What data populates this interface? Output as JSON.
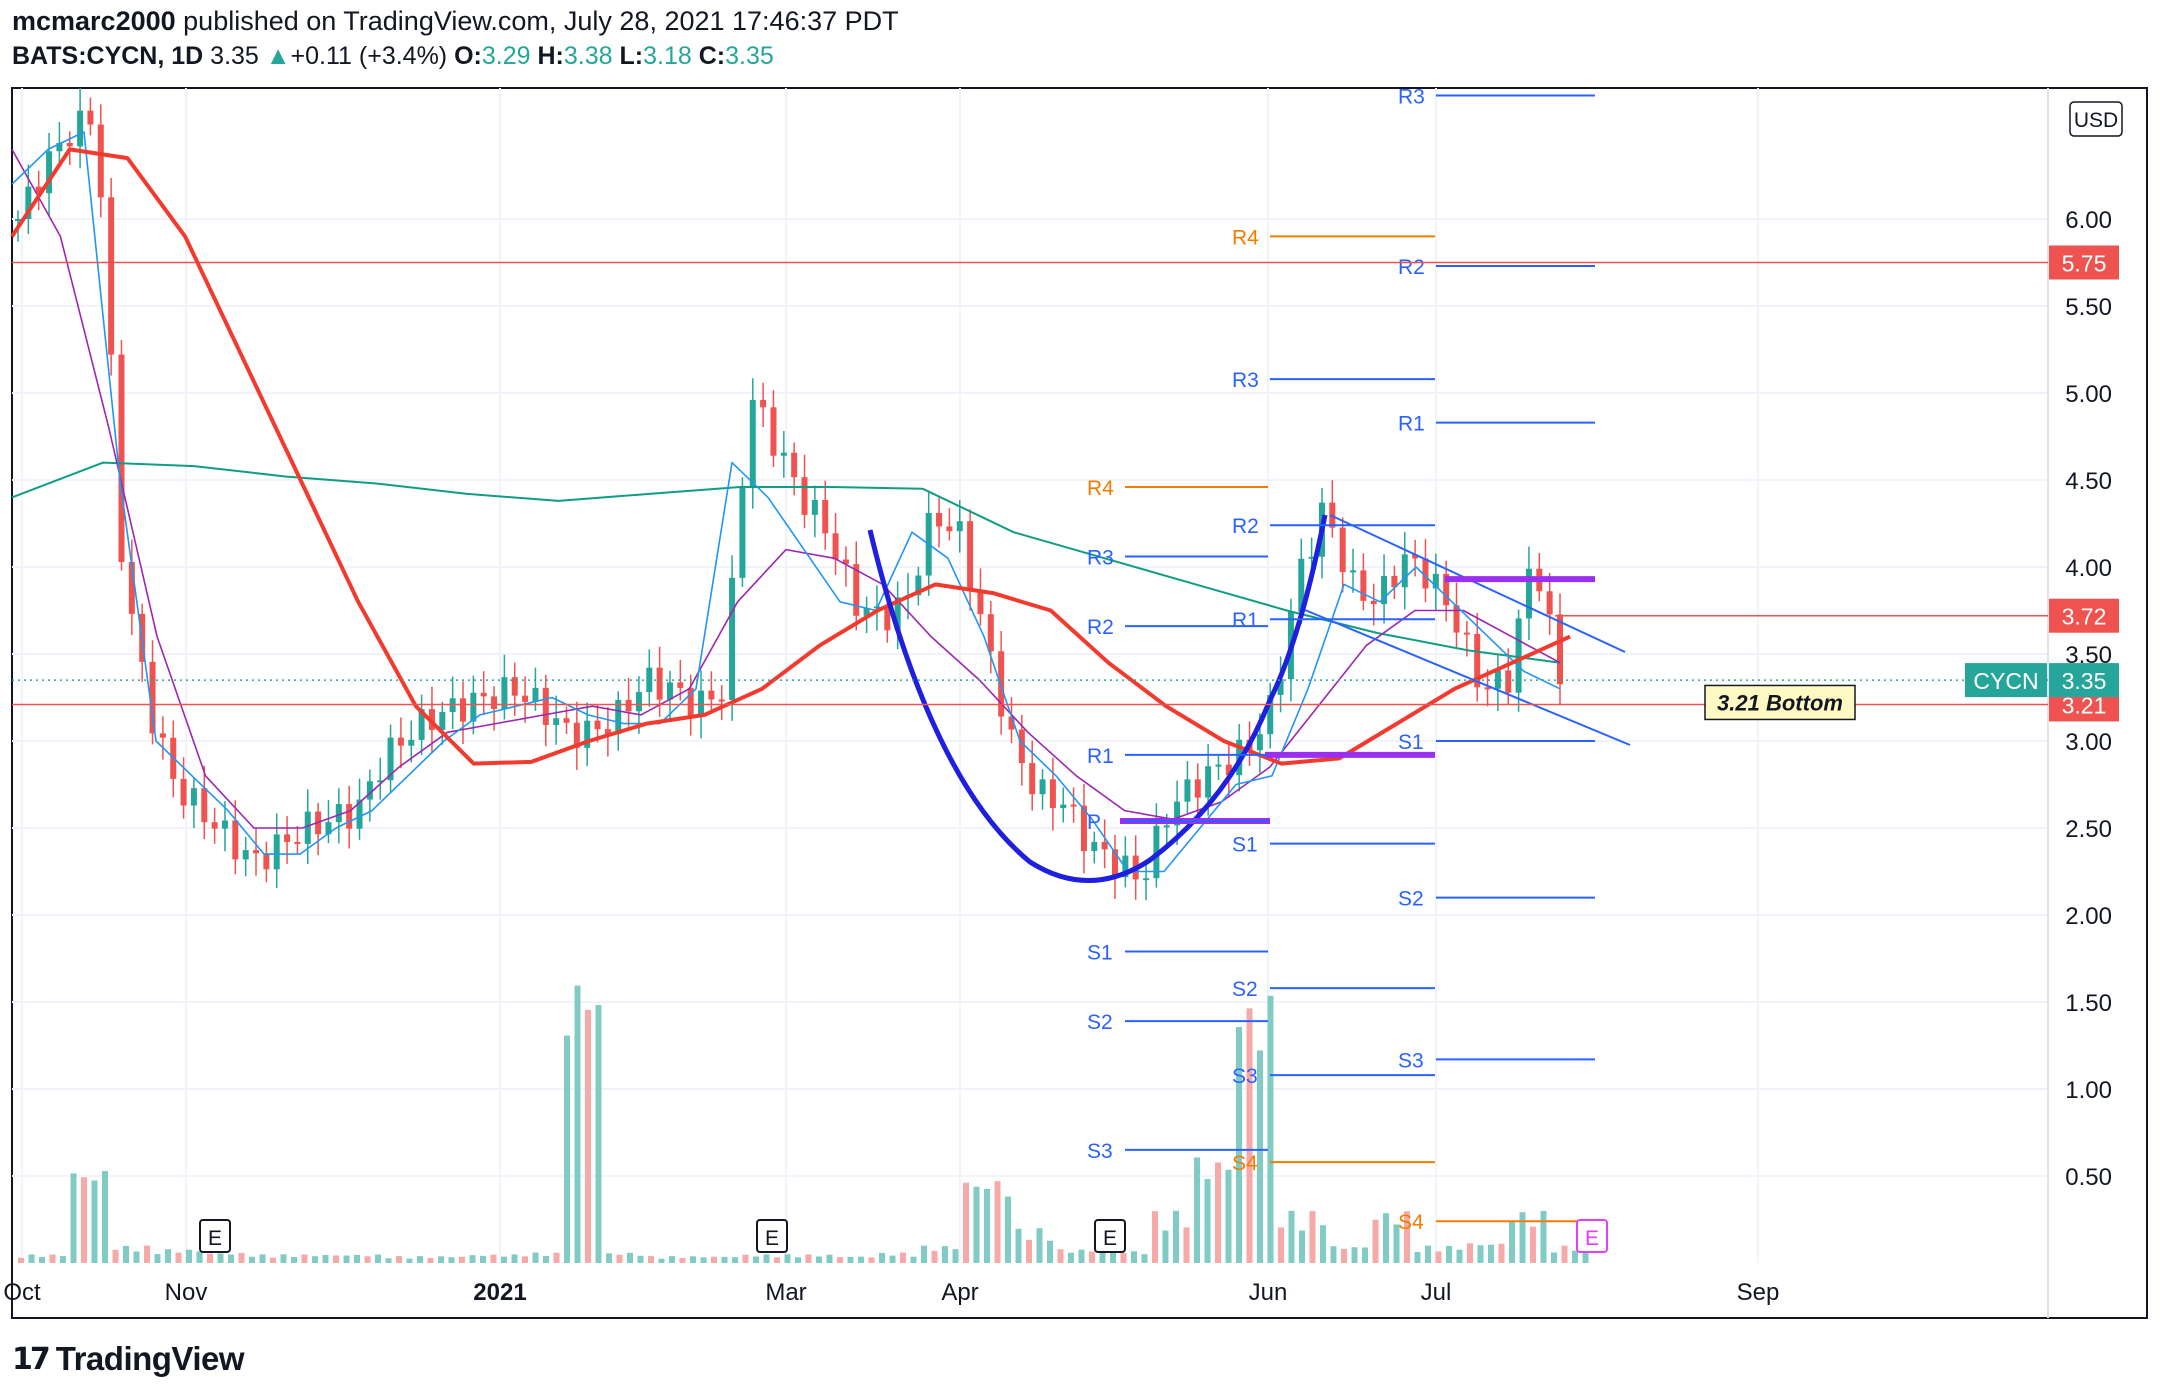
{
  "header": {
    "author": "mcmarc2000",
    "published_text": "published on TradingView.com, July 28, 2021 17:46:37 PDT",
    "symbol": "BATS:CYCN, 1D",
    "last": "3.35",
    "arrow": "▲",
    "change": "+0.11 (+3.4%)",
    "o_label": "O:",
    "o_value": "3.29",
    "h_label": "H:",
    "h_value": "3.38",
    "l_label": "L:",
    "l_value": "3.18",
    "c_label": "C:",
    "c_value": "3.35"
  },
  "currency": "USD",
  "logo_text": "TradingView",
  "colors": {
    "up": "#26a69a",
    "down": "#ef5350",
    "ma_fast": "#2196f3",
    "ma_mid": "#9c27b0",
    "ma_red": "#f23a2f",
    "ma_teal": "#0f9d84",
    "pattern": "#1f1fe0",
    "zone": "#9b2ff0",
    "pivot_blue": "#2962ff",
    "pivot_orange": "#f57c00"
  },
  "chart_data": {
    "type": "candlestick",
    "y_axis": {
      "min": 0,
      "max": 6.8,
      "ticks": [
        "0.50",
        "1.00",
        "1.50",
        "2.00",
        "2.50",
        "3.00",
        "3.50",
        "4.00",
        "4.50",
        "5.00",
        "5.50",
        "6.00"
      ]
    },
    "x_axis": {
      "ticks": [
        "Oct",
        "Nov",
        "2021",
        "Mar",
        "Apr",
        "Jun",
        "Jul",
        "Sep"
      ]
    },
    "price_labels": [
      {
        "label": "5.75",
        "value": 5.75,
        "kind": "level"
      },
      {
        "label": "3.72",
        "value": 3.72,
        "kind": "level"
      },
      {
        "label": "3.21",
        "value": 3.21,
        "kind": "level"
      },
      {
        "label": "3.35",
        "value": 3.35,
        "kind": "last",
        "symbol": "CYCN"
      }
    ],
    "annotations": [
      {
        "text": "3.21 Bottom",
        "value": 3.21
      }
    ],
    "earnings_markers": [
      "E",
      "E",
      "E",
      "E"
    ],
    "pivots": [
      {
        "label": "R4",
        "value": 4.46,
        "block": 1,
        "color": "orange"
      },
      {
        "label": "R3",
        "value": 4.06,
        "block": 1,
        "color": "blue"
      },
      {
        "label": "R2",
        "value": 3.66,
        "block": 1,
        "color": "blue"
      },
      {
        "label": "R1",
        "value": 2.92,
        "block": 1,
        "color": "blue"
      },
      {
        "label": "P",
        "value": 2.54,
        "block": 1,
        "color": "blue"
      },
      {
        "label": "S1",
        "value": 1.79,
        "block": 1,
        "color": "blue"
      },
      {
        "label": "S2",
        "value": 1.39,
        "block": 1,
        "color": "blue"
      },
      {
        "label": "S3",
        "value": 0.65,
        "block": 1,
        "color": "blue"
      },
      {
        "label": "R4",
        "value": 5.9,
        "block": 2,
        "color": "orange"
      },
      {
        "label": "R3",
        "value": 5.08,
        "block": 2,
        "color": "blue"
      },
      {
        "label": "R2",
        "value": 4.24,
        "block": 2,
        "color": "blue"
      },
      {
        "label": "R1",
        "value": 3.7,
        "block": 2,
        "color": "blue"
      },
      {
        "label": "S1",
        "value": 2.41,
        "block": 2,
        "color": "blue"
      },
      {
        "label": "S2",
        "value": 1.58,
        "block": 2,
        "color": "blue"
      },
      {
        "label": "S3",
        "value": 1.08,
        "block": 2,
        "color": "blue"
      },
      {
        "label": "S4",
        "value": 0.58,
        "block": 2,
        "color": "orange"
      },
      {
        "label": "R3",
        "value": 6.71,
        "block": 3,
        "color": "blue"
      },
      {
        "label": "R2",
        "value": 5.73,
        "block": 3,
        "color": "blue"
      },
      {
        "label": "R1",
        "value": 4.83,
        "block": 3,
        "color": "blue"
      },
      {
        "label": "S1",
        "value": 3.0,
        "block": 3,
        "color": "blue"
      },
      {
        "label": "S2",
        "value": 2.1,
        "block": 3,
        "color": "blue"
      },
      {
        "label": "S3",
        "value": 1.17,
        "block": 3,
        "color": "blue"
      },
      {
        "label": "S4",
        "value": 0.24,
        "block": 3,
        "color": "orange"
      }
    ],
    "series": [
      {
        "name": "Price (candles, approx. path)",
        "values": [
          6.0,
          6.3,
          6.5,
          6.6,
          4.0,
          3.2,
          2.75,
          2.6,
          2.45,
          2.3,
          2.4,
          2.5,
          2.55,
          2.6,
          2.9,
          3.05,
          3.15,
          3.2,
          3.25,
          3.3,
          3.2,
          3.05,
          3.05,
          3.15,
          3.35,
          3.3,
          3.2,
          3.3,
          5.0,
          4.7,
          4.4,
          4.2,
          3.8,
          3.7,
          3.8,
          4.3,
          4.2,
          3.6,
          3.0,
          2.7,
          2.65,
          2.4,
          2.3,
          2.2,
          2.6,
          2.75,
          2.85,
          2.95,
          3.2,
          3.95,
          4.35,
          3.9,
          3.8,
          4.05,
          3.95,
          3.7,
          3.3,
          3.35,
          4.1,
          3.35
        ]
      },
      {
        "name": "Fast MA (blue)",
        "values": [
          6.2,
          6.4,
          6.5,
          4.5,
          3.0,
          2.8,
          2.6,
          2.35,
          2.35,
          2.5,
          2.6,
          2.8,
          3.0,
          3.15,
          3.2,
          3.25,
          3.15,
          3.1,
          3.1,
          3.3,
          4.6,
          4.4,
          4.1,
          3.8,
          3.75,
          4.2,
          4.05,
          3.6,
          3.0,
          2.8,
          2.55,
          2.25,
          2.25,
          2.5,
          2.75,
          2.8,
          3.3,
          3.9,
          3.8,
          4.0,
          3.8,
          3.6,
          3.4,
          3.3
        ]
      },
      {
        "name": "Mid MA (purple)",
        "values": [
          6.4,
          5.9,
          4.8,
          3.6,
          2.8,
          2.5,
          2.5,
          2.6,
          2.85,
          3.05,
          3.1,
          3.15,
          3.2,
          3.15,
          3.3,
          3.8,
          4.1,
          4.05,
          3.9,
          3.6,
          3.35,
          3.05,
          2.8,
          2.6,
          2.55,
          2.65,
          2.85,
          3.2,
          3.55,
          3.75,
          3.75,
          3.6,
          3.45
        ]
      },
      {
        "name": "Slow MA (red)",
        "values": [
          5.9,
          6.4,
          6.35,
          5.9,
          5.2,
          4.5,
          3.8,
          3.2,
          2.87,
          2.88,
          3.0,
          3.1,
          3.15,
          3.3,
          3.55,
          3.75,
          3.9,
          3.85,
          3.75,
          3.45,
          3.2,
          3.0,
          2.87,
          2.9,
          3.1,
          3.3,
          3.45,
          3.6
        ]
      },
      {
        "name": "Long MA (teal)",
        "values": [
          4.4,
          4.6,
          4.58,
          4.52,
          4.48,
          4.42,
          4.38,
          4.42,
          4.46,
          4.46,
          4.45,
          4.2,
          4.05,
          3.9,
          3.75,
          3.62,
          3.52,
          3.45
        ]
      },
      {
        "name": "Volume (approx.)",
        "values": [
          0.05,
          0.56,
          0.1,
          0.08,
          0.06,
          0.05,
          0.05,
          0.05,
          0.04,
          0.04,
          0.05,
          0.06,
          1.7,
          0.06,
          0.04,
          0.04,
          0.05,
          0.05,
          0.04,
          0.06,
          0.1,
          0.5,
          0.2,
          0.08,
          0.07,
          0.3,
          0.62,
          1.57,
          0.3,
          0.1,
          0.3,
          0.1,
          0.12,
          0.3,
          0.1
        ]
      }
    ]
  }
}
